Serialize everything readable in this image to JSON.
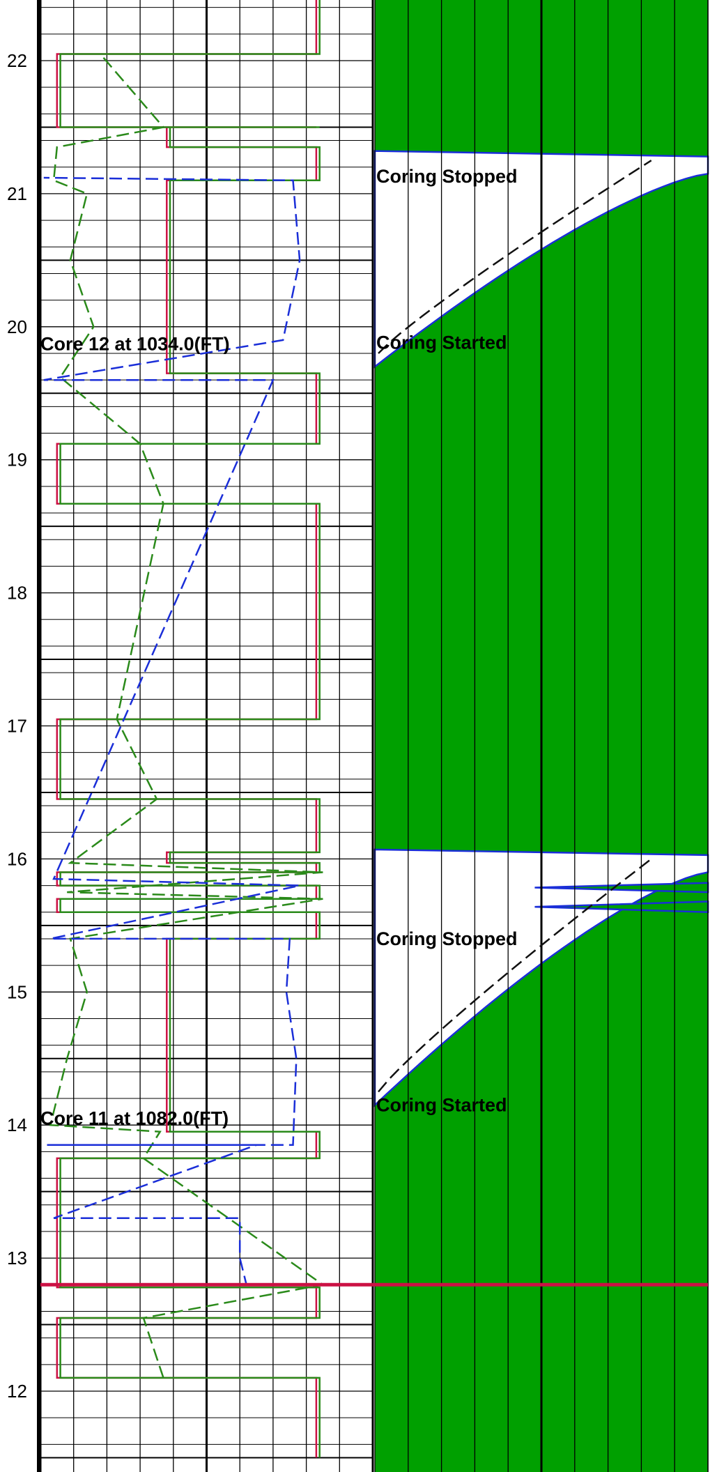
{
  "chart_data": {
    "type": "line",
    "y_axis": {
      "label": "",
      "range": [
        11.5,
        22.5
      ],
      "reversed": false,
      "major_ticks": [
        12,
        13,
        14,
        15,
        16,
        17,
        18,
        19,
        20,
        21,
        22
      ],
      "grid": true
    },
    "left_track": {
      "grid": "linear",
      "x_range": [
        0,
        10
      ],
      "series": [
        {
          "name": "",
          "color": "#cc1144",
          "style": "solid",
          "points": [
            [
              8.3,
              11.5
            ],
            [
              8.3,
              12.1
            ],
            [
              0.5,
              12.1
            ],
            [
              0.5,
              12.55
            ],
            [
              8.3,
              12.55
            ],
            [
              8.3,
              12.78
            ],
            [
              0.5,
              12.78
            ],
            [
              0.5,
              13.75
            ],
            [
              8.3,
              13.75
            ],
            [
              8.3,
              13.95
            ],
            [
              3.8,
              13.95
            ],
            [
              3.8,
              15.4
            ],
            [
              8.3,
              15.4
            ],
            [
              8.3,
              15.6
            ],
            [
              0.5,
              15.6
            ],
            [
              0.5,
              15.7
            ],
            [
              8.3,
              15.7
            ],
            [
              8.3,
              15.8
            ],
            [
              0.5,
              15.8
            ],
            [
              0.5,
              15.9
            ],
            [
              8.3,
              15.9
            ],
            [
              8.3,
              15.97
            ],
            [
              3.8,
              15.97
            ],
            [
              3.8,
              16.05
            ],
            [
              8.3,
              16.05
            ],
            [
              8.3,
              16.45
            ],
            [
              0.5,
              16.45
            ],
            [
              0.5,
              17.05
            ],
            [
              8.3,
              17.05
            ],
            [
              8.3,
              18.67
            ],
            [
              0.5,
              18.67
            ],
            [
              0.5,
              19.12
            ],
            [
              8.3,
              19.12
            ],
            [
              8.3,
              19.65
            ],
            [
              3.8,
              19.65
            ],
            [
              3.8,
              21.1
            ],
            [
              8.3,
              21.1
            ],
            [
              8.3,
              21.35
            ],
            [
              3.8,
              21.35
            ],
            [
              3.8,
              21.5
            ],
            [
              8.3,
              21.5
            ],
            [
              8.3,
              21.5
            ],
            [
              0.5,
              21.5
            ],
            [
              0.5,
              22.05
            ],
            [
              8.3,
              22.05
            ],
            [
              8.3,
              22.5
            ]
          ]
        },
        {
          "name": "",
          "color": "#2a8a1a",
          "style": "solid",
          "points": [
            [
              8.4,
              11.5
            ],
            [
              8.4,
              12.1
            ],
            [
              0.6,
              12.1
            ],
            [
              0.6,
              12.55
            ],
            [
              8.4,
              12.55
            ],
            [
              8.4,
              12.78
            ],
            [
              0.6,
              12.78
            ],
            [
              0.6,
              13.75
            ],
            [
              8.4,
              13.75
            ],
            [
              8.4,
              13.95
            ],
            [
              3.9,
              13.95
            ],
            [
              3.9,
              15.4
            ],
            [
              8.4,
              15.4
            ],
            [
              8.4,
              15.6
            ],
            [
              0.6,
              15.6
            ],
            [
              0.6,
              15.7
            ],
            [
              8.4,
              15.7
            ],
            [
              8.4,
              15.8
            ],
            [
              0.6,
              15.8
            ],
            [
              0.6,
              15.9
            ],
            [
              8.4,
              15.9
            ],
            [
              8.4,
              15.97
            ],
            [
              3.9,
              15.97
            ],
            [
              3.9,
              16.05
            ],
            [
              8.4,
              16.05
            ],
            [
              8.4,
              16.45
            ],
            [
              0.6,
              16.45
            ],
            [
              0.6,
              17.05
            ],
            [
              8.4,
              17.05
            ],
            [
              8.4,
              18.67
            ],
            [
              0.6,
              18.67
            ],
            [
              0.6,
              19.12
            ],
            [
              8.4,
              19.12
            ],
            [
              8.4,
              19.65
            ],
            [
              3.9,
              19.65
            ],
            [
              3.9,
              21.1
            ],
            [
              8.4,
              21.1
            ],
            [
              8.4,
              21.35
            ],
            [
              3.9,
              21.35
            ],
            [
              3.9,
              21.5
            ],
            [
              8.4,
              21.5
            ],
            [
              8.4,
              21.5
            ],
            [
              0.6,
              21.5
            ],
            [
              0.6,
              22.05
            ],
            [
              8.4,
              22.05
            ],
            [
              8.4,
              22.5
            ]
          ]
        },
        {
          "name": "",
          "color": "#2a8a1a",
          "style": "dashed",
          "points": [
            [
              3.7,
              12.1
            ],
            [
              3.1,
              12.55
            ],
            [
              8.5,
              12.8
            ],
            [
              3.1,
              13.75
            ],
            [
              3.6,
              13.95
            ],
            [
              0.3,
              14.0
            ],
            [
              0.8,
              14.5
            ],
            [
              1.4,
              15.0
            ],
            [
              0.9,
              15.4
            ],
            [
              8.5,
              15.7
            ],
            [
              0.8,
              15.75
            ],
            [
              8.5,
              15.9
            ],
            [
              0.9,
              15.97
            ],
            [
              3.5,
              16.45
            ],
            [
              2.3,
              17.05
            ],
            [
              3.7,
              18.67
            ],
            [
              3.0,
              19.12
            ],
            [
              0.6,
              19.62
            ],
            [
              1.6,
              20.0
            ],
            [
              0.9,
              20.5
            ],
            [
              1.4,
              21.0
            ],
            [
              0.4,
              21.1
            ],
            [
              0.5,
              21.35
            ],
            [
              3.7,
              21.5
            ],
            [
              1.8,
              22.05
            ]
          ]
        },
        {
          "name": "",
          "color": "#1a2ed8",
          "style": "dashed",
          "points": [
            [
              0.1,
              12.8
            ],
            [
              6.2,
              12.8
            ],
            [
              6.0,
              13.0
            ],
            [
              6.0,
              13.3
            ],
            [
              0.4,
              13.3
            ],
            [
              6.5,
              13.85
            ],
            [
              0.2,
              13.85
            ],
            [
              7.6,
              13.85
            ],
            [
              7.7,
              14.5
            ],
            [
              7.4,
              15.0
            ],
            [
              7.5,
              15.4
            ],
            [
              0.3,
              15.4
            ],
            [
              7.8,
              15.8
            ],
            [
              0.4,
              15.85
            ],
            [
              7.0,
              19.6
            ],
            [
              0.1,
              19.6
            ],
            [
              7.3,
              19.9
            ],
            [
              7.8,
              20.5
            ],
            [
              7.6,
              21.1
            ],
            [
              0.1,
              21.12
            ]
          ]
        }
      ]
    },
    "right_track": {
      "grid": "linear",
      "x_range": [
        0,
        10
      ],
      "fill_color": "#00a000",
      "boundary_color": "#1a2ed8",
      "dashed_curve_color": "#111111",
      "events": [
        {
          "label": "Coring Started",
          "depth": 14.15
        },
        {
          "label": "Coring Stopped",
          "depth": 15.4
        },
        {
          "label": "Coring Started",
          "depth": 19.88
        },
        {
          "label": "Coring Stopped",
          "depth": 21.13
        }
      ]
    },
    "cores": [
      {
        "number": "11",
        "depth_text": "1082.0(FT)",
        "label": "Core   11 at   1082.0(FT)",
        "y": 14.05
      },
      {
        "number": "12",
        "depth_text": "1034.0(FT)",
        "label": "Core   12 at   1034.0(FT)",
        "y": 19.87
      }
    ],
    "marker_line": {
      "y": 12.8,
      "color": "#cc1144"
    }
  }
}
